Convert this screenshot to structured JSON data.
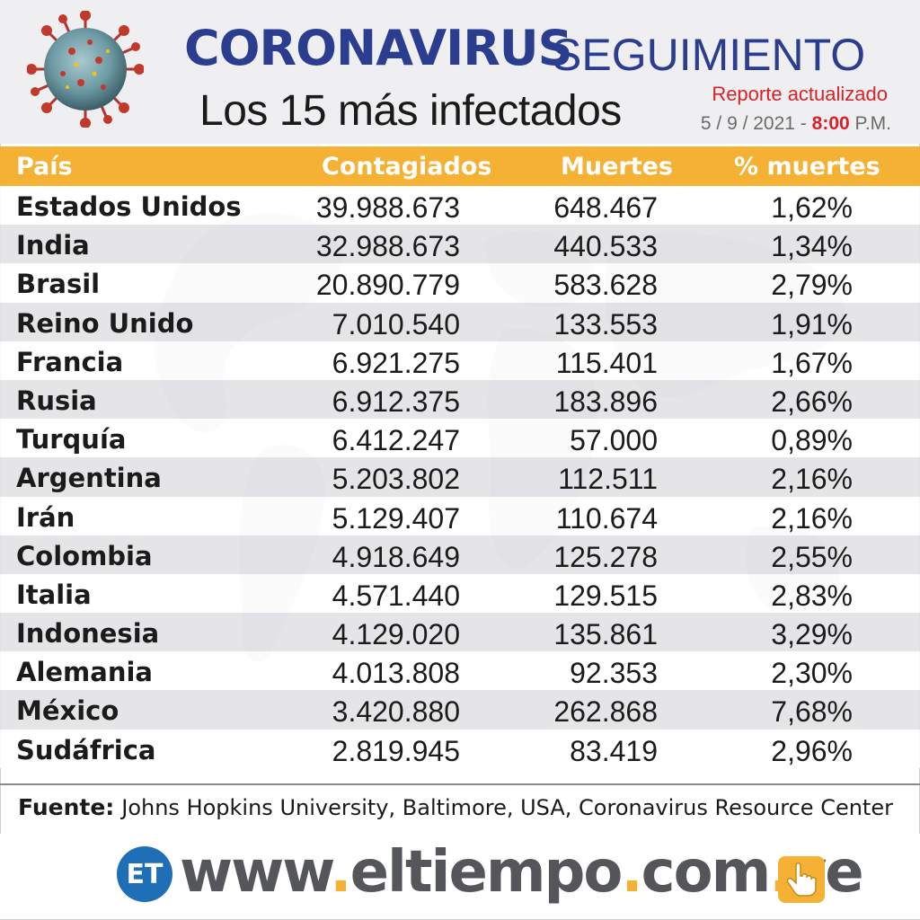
{
  "header": {
    "title_main": "CORONAVIRUS",
    "title_sub": "SEGUIMIENTO",
    "subtitle": "Los 15 más infectados",
    "report_label": "Reporte actualizado",
    "report_date": "5 / 9 / 2021 -",
    "report_time": "8:00",
    "report_ampm": "P.M."
  },
  "chart_data": {
    "type": "table",
    "columns": [
      "País",
      "Contagiados",
      "Muertes",
      "% muertes"
    ],
    "rows": [
      [
        "Estados Unidos",
        "39.988.673",
        "648.467",
        "1,62%"
      ],
      [
        "India",
        "32.988.673",
        "440.533",
        "1,34%"
      ],
      [
        "Brasil",
        "20.890.779",
        "583.628",
        "2,79%"
      ],
      [
        "Reino Unido",
        "7.010.540",
        "133.553",
        "1,91%"
      ],
      [
        "Francia",
        "6.921.275",
        "115.401",
        "1,67%"
      ],
      [
        "Rusia",
        "6.912.375",
        "183.896",
        "2,66%"
      ],
      [
        "Turquía",
        "6.412.247",
        "57.000",
        "0,89%"
      ],
      [
        "Argentina",
        "5.203.802",
        "112.511",
        "2,16%"
      ],
      [
        "Irán",
        "5.129.407",
        "110.674",
        "2,16%"
      ],
      [
        "Colombia",
        "4.918.649",
        "125.278",
        "2,55%"
      ],
      [
        "Italia",
        "4.571.440",
        "129.515",
        "2,83%"
      ],
      [
        "Indonesia",
        "4.129.020",
        "135.861",
        "3,29%"
      ],
      [
        "Alemania",
        "4.013.808",
        "92.353",
        "2,30%"
      ],
      [
        "México",
        "3.420.880",
        "262.868",
        "7,68%"
      ],
      [
        "Sudáfrica",
        "2.819.945",
        "83.419",
        "2,96%"
      ]
    ]
  },
  "source": {
    "label": "Fuente:",
    "text": "Johns Hopkins University, Baltimore, USA, Coronavirus Resource Center"
  },
  "footer": {
    "logo_text": "ET",
    "site_parts": [
      "www",
      ".",
      "eltiempo",
      ".",
      "com",
      ".",
      "ve"
    ]
  },
  "colors": {
    "title_blue": "#2b3d8f",
    "header_orange": "#f4b133",
    "accent_red": "#d6232a",
    "row_gray": "#e2e2e5"
  },
  "icons": {
    "virus": "coronavirus-icon",
    "hand": "pointing-hand-icon"
  }
}
